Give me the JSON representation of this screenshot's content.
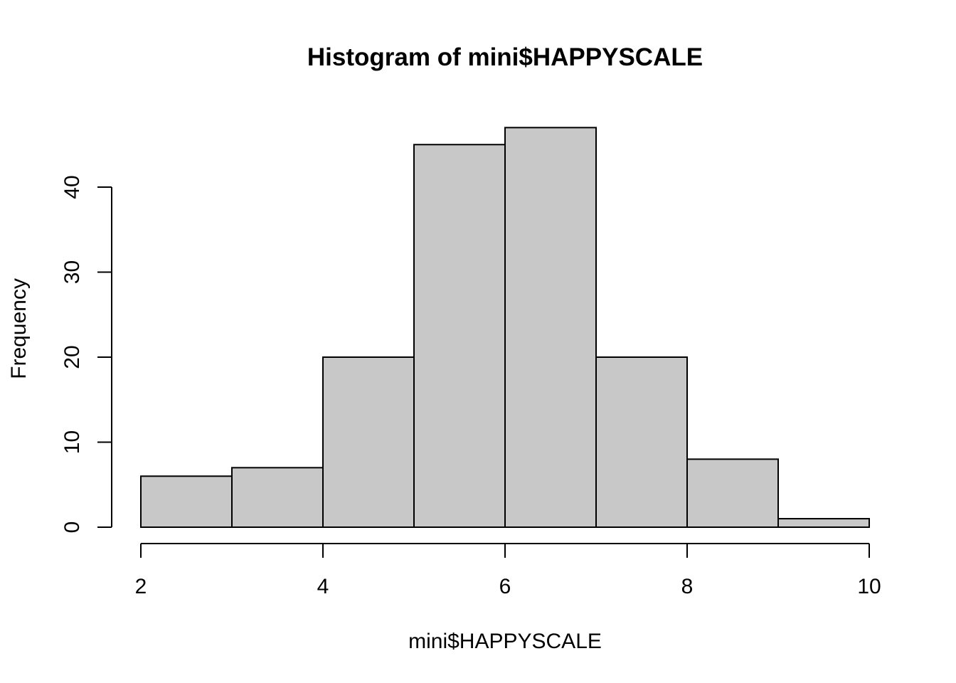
{
  "chart_data": {
    "type": "bar",
    "title": "Histogram of mini$HAPPYSCALE",
    "xlabel": "mini$HAPPYSCALE",
    "ylabel": "Frequency",
    "bins": [
      {
        "x0": 2,
        "x1": 3,
        "count": 6
      },
      {
        "x0": 3,
        "x1": 4,
        "count": 7
      },
      {
        "x0": 4,
        "x1": 5,
        "count": 20
      },
      {
        "x0": 5,
        "x1": 6,
        "count": 45
      },
      {
        "x0": 6,
        "x1": 7,
        "count": 47
      },
      {
        "x0": 7,
        "x1": 8,
        "count": 20
      },
      {
        "x0": 8,
        "x1": 9,
        "count": 8
      },
      {
        "x0": 9,
        "x1": 10,
        "count": 1
      }
    ],
    "xlim": [
      2,
      10
    ],
    "ylim": [
      0,
      47
    ],
    "x_ticks": [
      2,
      4,
      6,
      8,
      10
    ],
    "y_ticks": [
      0,
      10,
      20,
      30,
      40
    ],
    "bar_color": "#c8c8c8",
    "grid": false,
    "legend": "none"
  }
}
